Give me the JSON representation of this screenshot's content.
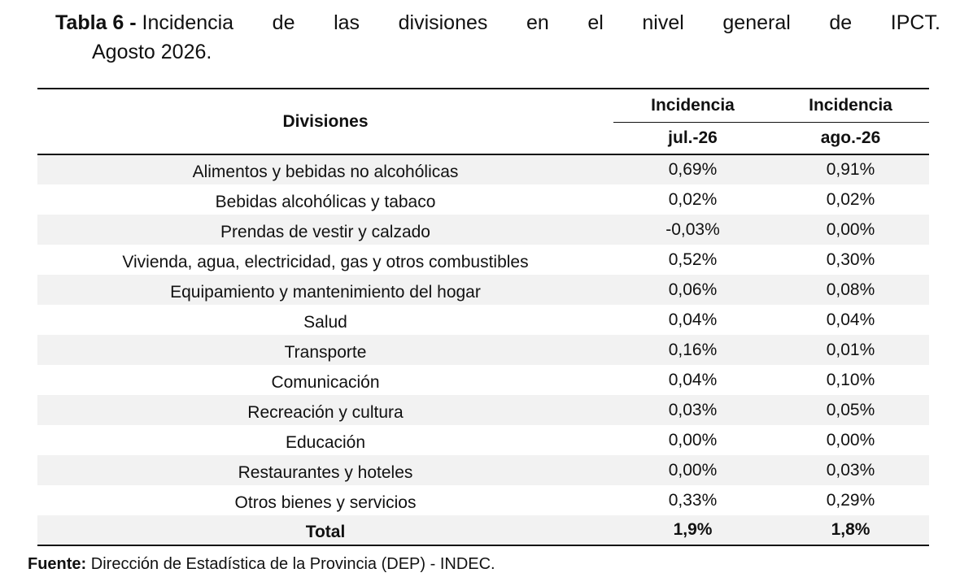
{
  "title": {
    "label": "Tabla 6 -",
    "words": [
      "Incidencia",
      "de",
      "las",
      "divisiones",
      "en",
      "el",
      "nivel",
      "general",
      "de",
      "IPCT."
    ],
    "line2": "Agosto 2026."
  },
  "table": {
    "header": {
      "divisiones": "Divisiones",
      "col1_top": "Incidencia",
      "col1_bottom": "jul.-26",
      "col2_top": "Incidencia",
      "col2_bottom": "ago.-26"
    },
    "rows": [
      {
        "division": "Alimentos y bebidas no alcohólicas",
        "jul": "0,69%",
        "ago": "0,91%"
      },
      {
        "division": "Bebidas alcohólicas y tabaco",
        "jul": "0,02%",
        "ago": "0,02%"
      },
      {
        "division": "Prendas de vestir y calzado",
        "jul": "-0,03%",
        "ago": "0,00%"
      },
      {
        "division": "Vivienda, agua, electricidad, gas y otros combustibles",
        "jul": "0,52%",
        "ago": "0,30%"
      },
      {
        "division": "Equipamiento y mantenimiento del hogar",
        "jul": "0,06%",
        "ago": "0,08%"
      },
      {
        "division": "Salud",
        "jul": "0,04%",
        "ago": "0,04%"
      },
      {
        "division": "Transporte",
        "jul": "0,16%",
        "ago": "0,01%"
      },
      {
        "division": "Comunicación",
        "jul": "0,04%",
        "ago": "0,10%"
      },
      {
        "division": "Recreación y cultura",
        "jul": "0,03%",
        "ago": "0,05%"
      },
      {
        "division": "Educación",
        "jul": "0,00%",
        "ago": "0,00%"
      },
      {
        "division": "Restaurantes y hoteles",
        "jul": "0,00%",
        "ago": "0,03%"
      },
      {
        "division": "Otros bienes y servicios",
        "jul": "0,33%",
        "ago": "0,29%"
      }
    ],
    "total": {
      "label": "Total",
      "jul": "1,9%",
      "ago": "1,8%"
    }
  },
  "source": {
    "label": "Fuente:",
    "text": " Dirección de Estadística de la Provincia (DEP) - INDEC."
  }
}
